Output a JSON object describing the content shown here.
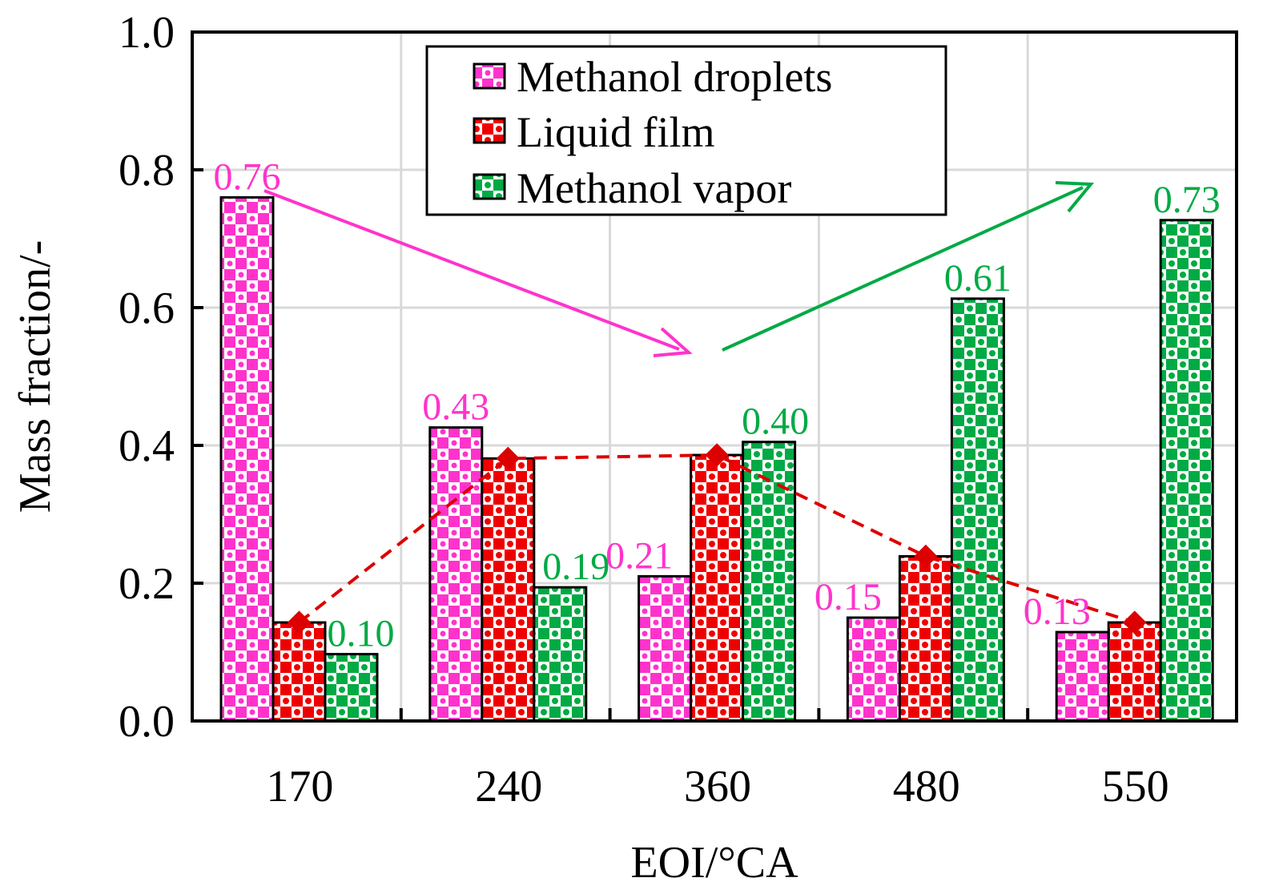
{
  "chart_data": {
    "type": "bar",
    "title": "",
    "xlabel": "EOI/°CA",
    "ylabel": "Mass fraction/-",
    "ylim": [
      0,
      1.0
    ],
    "yticks": [
      "0.0",
      "0.2",
      "0.4",
      "0.6",
      "0.8",
      "1.0"
    ],
    "grid": true,
    "legend_position": "top-center",
    "categories": [
      "170",
      "240",
      "360",
      "480",
      "550"
    ],
    "series": [
      {
        "name": "Methanol droplets",
        "color": "#ff33cc",
        "values": [
          0.76,
          0.426,
          0.21,
          0.15,
          0.129
        ],
        "labels": [
          "0.76",
          "0.43",
          "0.21",
          "0.15",
          "0.13"
        ]
      },
      {
        "name": "Liquid film",
        "color": "#ee0000",
        "values": [
          0.143,
          0.381,
          0.386,
          0.239,
          0.143
        ],
        "labels": [
          "",
          "",
          "",
          "",
          ""
        ]
      },
      {
        "name": "Methanol vapor",
        "color": "#00aa44",
        "values": [
          0.097,
          0.194,
          0.405,
          0.613,
          0.727
        ],
        "labels": [
          "0.10",
          "0.19",
          "0.40",
          "0.61",
          "0.73"
        ]
      }
    ],
    "trend_line": {
      "series": "Liquid film",
      "style": "dashed",
      "color": "#dd0000",
      "marker": "diamond",
      "values": [
        0.143,
        0.381,
        0.386,
        0.239,
        0.143
      ]
    },
    "annotations": [
      {
        "type": "arrow",
        "color": "#ff33cc",
        "meaning": "decreasing methanol droplets"
      },
      {
        "type": "arrow",
        "color": "#00aa44",
        "meaning": "increasing methanol vapor"
      }
    ]
  }
}
